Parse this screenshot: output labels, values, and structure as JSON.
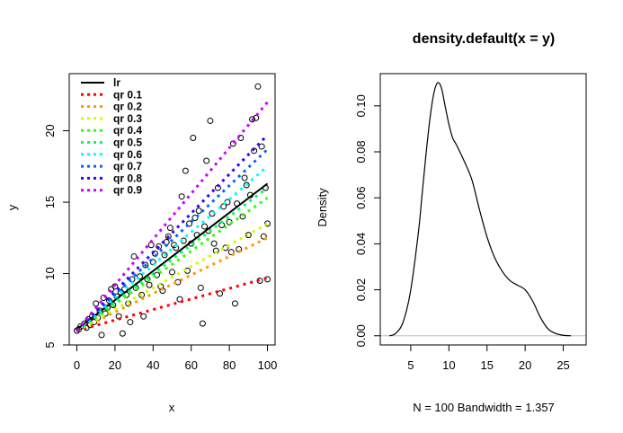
{
  "chart_data": [
    {
      "type": "scatter",
      "title": "",
      "xlabel": "x",
      "ylabel": "y",
      "xlim": [
        -4,
        104
      ],
      "ylim": [
        5,
        24
      ],
      "x_ticks": [
        0,
        20,
        40,
        60,
        80,
        100
      ],
      "y_ticks": [
        5,
        10,
        15,
        20
      ],
      "points": [
        [
          0,
          6.0
        ],
        [
          1,
          6.1
        ],
        [
          2,
          6.3
        ],
        [
          4,
          6.5
        ],
        [
          5,
          6.2
        ],
        [
          6,
          6.8
        ],
        [
          7,
          6.4
        ],
        [
          8,
          7.0
        ],
        [
          9,
          6.6
        ],
        [
          10,
          7.9
        ],
        [
          11,
          6.9
        ],
        [
          12,
          7.4
        ],
        [
          13,
          5.7
        ],
        [
          14,
          8.3
        ],
        [
          15,
          7.2
        ],
        [
          16,
          7.6
        ],
        [
          17,
          8.1
        ],
        [
          18,
          8.9
        ],
        [
          19,
          7.8
        ],
        [
          20,
          9.1
        ],
        [
          21,
          8.4
        ],
        [
          22,
          7.0
        ],
        [
          23,
          8.7
        ],
        [
          24,
          5.8
        ],
        [
          25,
          8.9
        ],
        [
          26,
          8.5
        ],
        [
          27,
          7.9
        ],
        [
          28,
          6.6
        ],
        [
          29,
          9.6
        ],
        [
          30,
          11.2
        ],
        [
          31,
          9.0
        ],
        [
          33,
          9.8
        ],
        [
          34,
          8.5
        ],
        [
          35,
          7.0
        ],
        [
          36,
          10.6
        ],
        [
          37,
          9.6
        ],
        [
          38,
          9.2
        ],
        [
          39,
          12.0
        ],
        [
          40,
          10.8
        ],
        [
          41,
          11.4
        ],
        [
          42,
          9.9
        ],
        [
          43,
          11.9
        ],
        [
          44,
          9.1
        ],
        [
          45,
          8.8
        ],
        [
          46,
          11.3
        ],
        [
          47,
          12.2
        ],
        [
          48,
          12.6
        ],
        [
          49,
          13.2
        ],
        [
          50,
          10.1
        ],
        [
          51,
          12.0
        ],
        [
          52,
          11.8
        ],
        [
          53,
          9.4
        ],
        [
          54,
          8.2
        ],
        [
          55,
          15.4
        ],
        [
          56,
          12.3
        ],
        [
          57,
          17.2
        ],
        [
          58,
          10.2
        ],
        [
          59,
          13.5
        ],
        [
          60,
          12.1
        ],
        [
          61,
          19.5
        ],
        [
          62,
          13.9
        ],
        [
          63,
          12.7
        ],
        [
          64,
          14.4
        ],
        [
          65,
          9.0
        ],
        [
          66,
          6.5
        ],
        [
          67,
          13.3
        ],
        [
          68,
          17.9
        ],
        [
          69,
          13.0
        ],
        [
          70,
          20.7
        ],
        [
          71,
          14.2
        ],
        [
          72,
          12.1
        ],
        [
          73,
          11.6
        ],
        [
          74,
          16.0
        ],
        [
          75,
          8.6
        ],
        [
          76,
          13.4
        ],
        [
          77,
          14.7
        ],
        [
          78,
          11.8
        ],
        [
          79,
          15.0
        ],
        [
          80,
          13.6
        ],
        [
          81,
          11.5
        ],
        [
          82,
          19.1
        ],
        [
          83,
          7.9
        ],
        [
          84,
          14.9
        ],
        [
          85,
          11.7
        ],
        [
          86,
          19.5
        ],
        [
          87,
          14.0
        ],
        [
          88,
          16.7
        ],
        [
          89,
          16.2
        ],
        [
          90,
          12.7
        ],
        [
          91,
          15.5
        ],
        [
          92,
          20.8
        ],
        [
          93,
          18.6
        ],
        [
          94,
          20.9
        ],
        [
          95,
          23.1
        ],
        [
          96,
          9.5
        ],
        [
          97,
          18.9
        ],
        [
          98,
          12.6
        ],
        [
          99,
          16.0
        ],
        [
          100,
          13.5
        ],
        [
          100,
          9.6
        ]
      ],
      "fits": [
        {
          "name": "lr",
          "color": "#000000",
          "dashed": false,
          "intercept": 6.1,
          "slope": 0.102
        },
        {
          "name": "qr 0.1",
          "color": "#FF0000",
          "dashed": true,
          "intercept": 6.0,
          "slope": 0.037
        },
        {
          "name": "qr 0.2",
          "color": "#FF9900",
          "dashed": true,
          "intercept": 6.0,
          "slope": 0.065
        },
        {
          "name": "qr 0.3",
          "color": "#CCFF00",
          "dashed": true,
          "intercept": 6.0,
          "slope": 0.075
        },
        {
          "name": "qr 0.4",
          "color": "#33FF00",
          "dashed": true,
          "intercept": 6.0,
          "slope": 0.093
        },
        {
          "name": "qr 0.5",
          "color": "#00FF66",
          "dashed": true,
          "intercept": 6.0,
          "slope": 0.1
        },
        {
          "name": "qr 0.6",
          "color": "#00FFFF",
          "dashed": true,
          "intercept": 6.0,
          "slope": 0.115
        },
        {
          "name": "qr 0.7",
          "color": "#0066FF",
          "dashed": true,
          "intercept": 6.0,
          "slope": 0.127
        },
        {
          "name": "qr 0.8",
          "color": "#3300FF",
          "dashed": true,
          "intercept": 6.0,
          "slope": 0.137
        },
        {
          "name": "qr 0.9",
          "color": "#CC00FF",
          "dashed": true,
          "intercept": 6.0,
          "slope": 0.16
        }
      ],
      "legend": [
        "lr",
        "qr 0.1",
        "qr 0.2",
        "qr 0.3",
        "qr 0.4",
        "qr 0.5",
        "qr 0.6",
        "qr 0.7",
        "qr 0.8",
        "qr 0.9"
      ],
      "legend_position": "top-left",
      "grid": false
    },
    {
      "type": "line",
      "title": "density.default(x = y)",
      "xlabel": "N = 100   Bandwidth = 1.357",
      "ylabel": "Density",
      "xlim": [
        1,
        28
      ],
      "ylim": [
        -0.004,
        0.114
      ],
      "x_ticks": [
        5,
        10,
        15,
        20,
        25
      ],
      "y_ticks": [
        0.0,
        0.02,
        0.04,
        0.06,
        0.08,
        0.1
      ],
      "y_tick_labels": [
        "0.00",
        "0.02",
        "0.04",
        "0.06",
        "0.08",
        "0.10"
      ],
      "series": [
        {
          "name": "density",
          "color": "#000000",
          "x": [
            2.2,
            3,
            4,
            5,
            6,
            6.5,
            7,
            7.5,
            8,
            8.5,
            9,
            9.5,
            10,
            10.5,
            11,
            12,
            13,
            14,
            15,
            16,
            17,
            18,
            19,
            20,
            21,
            22,
            23,
            24,
            25,
            26
          ],
          "y": [
            0.0,
            0.001,
            0.006,
            0.02,
            0.045,
            0.062,
            0.079,
            0.094,
            0.105,
            0.11,
            0.108,
            0.1,
            0.092,
            0.086,
            0.083,
            0.076,
            0.068,
            0.055,
            0.043,
            0.034,
            0.028,
            0.024,
            0.022,
            0.02,
            0.015,
            0.008,
            0.003,
            0.001,
            0.0002,
            0.0
          ]
        }
      ],
      "baseline": {
        "y": 0,
        "color": "#BEBEBE"
      },
      "grid": false
    }
  ]
}
